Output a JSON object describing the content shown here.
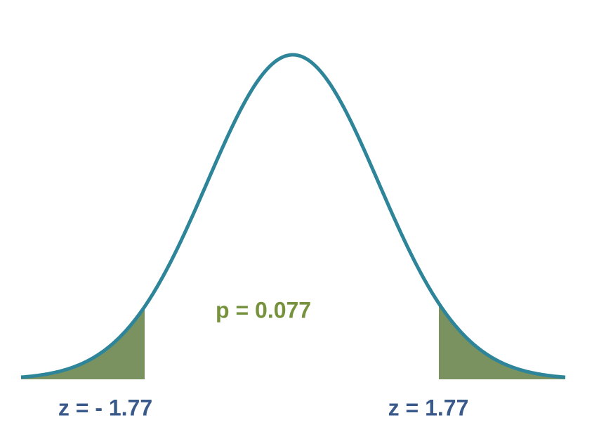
{
  "annotation": "p = 0.077",
  "labels": [
    "z = - 1.77",
    "z = 1.77"
  ]
}
